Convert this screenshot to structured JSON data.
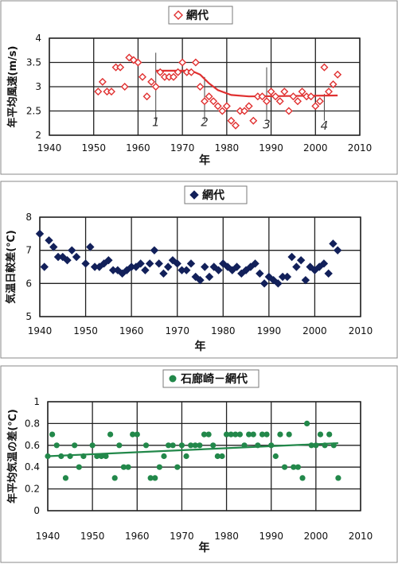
{
  "colors": {
    "red": "#e03030",
    "navy": "#12205a",
    "green": "#22884a",
    "frame": "#222222"
  },
  "chart_data": [
    {
      "type": "scatter",
      "title": "網代",
      "legend_marker": "open-diamond",
      "color": "#e03030",
      "xlabel": "年",
      "ylabel": "年平均風速(m/s)",
      "xlim": [
        1940,
        2010
      ],
      "ylim": [
        2,
        4
      ],
      "xticks": [
        "1940",
        "1950",
        "1960",
        "1970",
        "1980",
        "1990",
        "2000",
        "2010"
      ],
      "yticks": [
        "2",
        "2.5",
        "3",
        "3.5",
        "4"
      ],
      "grid": true,
      "legend_position": "top-center",
      "points": [
        {
          "x": 1951,
          "y": 2.9
        },
        {
          "x": 1952,
          "y": 3.1
        },
        {
          "x": 1953,
          "y": 2.9
        },
        {
          "x": 1954,
          "y": 2.9
        },
        {
          "x": 1955,
          "y": 3.4
        },
        {
          "x": 1956,
          "y": 3.4
        },
        {
          "x": 1957,
          "y": 3.0
        },
        {
          "x": 1958,
          "y": 3.6
        },
        {
          "x": 1959,
          "y": 3.55
        },
        {
          "x": 1960,
          "y": 3.5
        },
        {
          "x": 1961,
          "y": 3.2
        },
        {
          "x": 1962,
          "y": 2.8
        },
        {
          "x": 1963,
          "y": 3.1
        },
        {
          "x": 1964,
          "y": 3.0
        },
        {
          "x": 1965,
          "y": 3.3
        },
        {
          "x": 1966,
          "y": 3.2
        },
        {
          "x": 1967,
          "y": 3.2
        },
        {
          "x": 1968,
          "y": 3.2
        },
        {
          "x": 1969,
          "y": 3.3
        },
        {
          "x": 1970,
          "y": 3.5
        },
        {
          "x": 1971,
          "y": 3.3
        },
        {
          "x": 1972,
          "y": 3.3
        },
        {
          "x": 1973,
          "y": 3.5
        },
        {
          "x": 1974,
          "y": 3.0
        },
        {
          "x": 1975,
          "y": 2.7
        },
        {
          "x": 1976,
          "y": 2.8
        },
        {
          "x": 1977,
          "y": 2.7
        },
        {
          "x": 1978,
          "y": 2.6
        },
        {
          "x": 1979,
          "y": 2.5
        },
        {
          "x": 1980,
          "y": 2.6
        },
        {
          "x": 1981,
          "y": 2.3
        },
        {
          "x": 1982,
          "y": 2.2
        },
        {
          "x": 1983,
          "y": 2.5
        },
        {
          "x": 1984,
          "y": 2.5
        },
        {
          "x": 1985,
          "y": 2.6
        },
        {
          "x": 1986,
          "y": 2.3
        },
        {
          "x": 1987,
          "y": 2.8
        },
        {
          "x": 1988,
          "y": 2.8
        },
        {
          "x": 1989,
          "y": 2.7
        },
        {
          "x": 1990,
          "y": 2.9
        },
        {
          "x": 1991,
          "y": 2.8
        },
        {
          "x": 1992,
          "y": 2.7
        },
        {
          "x": 1993,
          "y": 2.9
        },
        {
          "x": 1994,
          "y": 2.5
        },
        {
          "x": 1995,
          "y": 2.8
        },
        {
          "x": 1996,
          "y": 2.7
        },
        {
          "x": 1997,
          "y": 2.9
        },
        {
          "x": 1998,
          "y": 2.8
        },
        {
          "x": 1999,
          "y": 2.8
        },
        {
          "x": 2000,
          "y": 2.6
        },
        {
          "x": 2001,
          "y": 2.7
        },
        {
          "x": 2002,
          "y": 3.4
        },
        {
          "x": 2003,
          "y": 2.9
        },
        {
          "x": 2004,
          "y": 3.05
        },
        {
          "x": 2005,
          "y": 3.25
        }
      ],
      "trend_line": [
        {
          "x": 1964,
          "y": 3.33
        },
        {
          "x": 1972,
          "y": 3.33
        },
        {
          "x": 1974,
          "y": 3.25
        },
        {
          "x": 1976,
          "y": 3.07
        },
        {
          "x": 1978,
          "y": 2.93
        },
        {
          "x": 1981,
          "y": 2.83
        },
        {
          "x": 1985,
          "y": 2.8
        },
        {
          "x": 2005,
          "y": 2.82
        }
      ],
      "annotations": [
        {
          "text": "1",
          "x": 1964,
          "y": 2.27
        },
        {
          "text": "2",
          "x": 1975,
          "y": 2.27
        },
        {
          "text": "3",
          "x": 1989,
          "y": 2.22
        },
        {
          "text": "4",
          "x": 2002,
          "y": 2.2
        }
      ],
      "marker_lines": [
        {
          "x": 1964,
          "y0": 2.3,
          "y1": 3.7
        },
        {
          "x": 1975,
          "y0": 2.3,
          "y1": 3.2
        },
        {
          "x": 1989,
          "y0": 2.3,
          "y1": 3.4
        },
        {
          "x": 2002,
          "y0": 2.3,
          "y1": 2.85
        }
      ]
    },
    {
      "type": "scatter",
      "title": "網代",
      "legend_marker": "filled-diamond",
      "color": "#12205a",
      "xlabel": "年",
      "ylabel": "気温日較差(℃)",
      "xlim": [
        1940,
        2010
      ],
      "ylim": [
        5,
        8
      ],
      "xticks": [
        "1940",
        "1950",
        "1960",
        "1970",
        "1980",
        "1990",
        "2000",
        "2010"
      ],
      "yticks": [
        "5",
        "6",
        "7",
        "8"
      ],
      "grid": true,
      "legend_position": "top-left",
      "points": [
        {
          "x": 1940,
          "y": 7.5
        },
        {
          "x": 1941,
          "y": 6.5
        },
        {
          "x": 1942,
          "y": 7.3
        },
        {
          "x": 1943,
          "y": 7.1
        },
        {
          "x": 1944,
          "y": 6.8
        },
        {
          "x": 1945,
          "y": 6.8
        },
        {
          "x": 1946,
          "y": 6.7
        },
        {
          "x": 1947,
          "y": 7.0
        },
        {
          "x": 1948,
          "y": 6.8
        },
        {
          "x": 1950,
          "y": 6.6
        },
        {
          "x": 1951,
          "y": 7.1
        },
        {
          "x": 1952,
          "y": 6.5
        },
        {
          "x": 1953,
          "y": 6.5
        },
        {
          "x": 1954,
          "y": 6.6
        },
        {
          "x": 1955,
          "y": 6.7
        },
        {
          "x": 1956,
          "y": 6.4
        },
        {
          "x": 1957,
          "y": 6.4
        },
        {
          "x": 1958,
          "y": 6.3
        },
        {
          "x": 1959,
          "y": 6.4
        },
        {
          "x": 1960,
          "y": 6.5
        },
        {
          "x": 1961,
          "y": 6.5
        },
        {
          "x": 1962,
          "y": 6.6
        },
        {
          "x": 1963,
          "y": 6.4
        },
        {
          "x": 1964,
          "y": 6.6
        },
        {
          "x": 1965,
          "y": 7.0
        },
        {
          "x": 1966,
          "y": 6.6
        },
        {
          "x": 1967,
          "y": 6.3
        },
        {
          "x": 1968,
          "y": 6.5
        },
        {
          "x": 1969,
          "y": 6.7
        },
        {
          "x": 1970,
          "y": 6.6
        },
        {
          "x": 1971,
          "y": 6.4
        },
        {
          "x": 1972,
          "y": 6.4
        },
        {
          "x": 1973,
          "y": 6.6
        },
        {
          "x": 1974,
          "y": 6.2
        },
        {
          "x": 1975,
          "y": 6.1
        },
        {
          "x": 1976,
          "y": 6.5
        },
        {
          "x": 1977,
          "y": 6.2
        },
        {
          "x": 1978,
          "y": 6.5
        },
        {
          "x": 1979,
          "y": 6.4
        },
        {
          "x": 1980,
          "y": 6.6
        },
        {
          "x": 1981,
          "y": 6.5
        },
        {
          "x": 1982,
          "y": 6.4
        },
        {
          "x": 1983,
          "y": 6.5
        },
        {
          "x": 1984,
          "y": 6.3
        },
        {
          "x": 1985,
          "y": 6.4
        },
        {
          "x": 1986,
          "y": 6.5
        },
        {
          "x": 1987,
          "y": 6.6
        },
        {
          "x": 1988,
          "y": 6.3
        },
        {
          "x": 1989,
          "y": 6.0
        },
        {
          "x": 1990,
          "y": 6.2
        },
        {
          "x": 1991,
          "y": 6.1
        },
        {
          "x": 1992,
          "y": 6.0
        },
        {
          "x": 1993,
          "y": 6.2
        },
        {
          "x": 1994,
          "y": 6.2
        },
        {
          "x": 1995,
          "y": 6.8
        },
        {
          "x": 1996,
          "y": 6.5
        },
        {
          "x": 1997,
          "y": 6.7
        },
        {
          "x": 1998,
          "y": 6.1
        },
        {
          "x": 1999,
          "y": 6.5
        },
        {
          "x": 2000,
          "y": 6.4
        },
        {
          "x": 2001,
          "y": 6.5
        },
        {
          "x": 2002,
          "y": 6.6
        },
        {
          "x": 2003,
          "y": 6.3
        },
        {
          "x": 2004,
          "y": 7.2
        },
        {
          "x": 2005,
          "y": 7.0
        }
      ]
    },
    {
      "type": "scatter",
      "title": "石廊崎－網代",
      "legend_marker": "filled-circle",
      "color": "#22884a",
      "xlabel": "年",
      "ylabel": "年平均気温の差(℃)",
      "xlim": [
        1940,
        2010
      ],
      "ylim": [
        0,
        1
      ],
      "xticks": [
        "1940",
        "1950",
        "1960",
        "1970",
        "1980",
        "1990",
        "2000",
        "2010"
      ],
      "yticks": [
        "0",
        "0.2",
        "0.4",
        "0.6",
        "0.8",
        "1"
      ],
      "grid": true,
      "legend_position": "top-center",
      "points": [
        {
          "x": 1940,
          "y": 0.5
        },
        {
          "x": 1941,
          "y": 0.7
        },
        {
          "x": 1942,
          "y": 0.6
        },
        {
          "x": 1943,
          "y": 0.5
        },
        {
          "x": 1944,
          "y": 0.3
        },
        {
          "x": 1945,
          "y": 0.5
        },
        {
          "x": 1946,
          "y": 0.6
        },
        {
          "x": 1947,
          "y": 0.4
        },
        {
          "x": 1948,
          "y": 0.5
        },
        {
          "x": 1950,
          "y": 0.6
        },
        {
          "x": 1951,
          "y": 0.5
        },
        {
          "x": 1952,
          "y": 0.5
        },
        {
          "x": 1953,
          "y": 0.5
        },
        {
          "x": 1954,
          "y": 0.7
        },
        {
          "x": 1955,
          "y": 0.3
        },
        {
          "x": 1956,
          "y": 0.6
        },
        {
          "x": 1957,
          "y": 0.4
        },
        {
          "x": 1958,
          "y": 0.4
        },
        {
          "x": 1959,
          "y": 0.7
        },
        {
          "x": 1960,
          "y": 0.7
        },
        {
          "x": 1962,
          "y": 0.6
        },
        {
          "x": 1963,
          "y": 0.3
        },
        {
          "x": 1964,
          "y": 0.3
        },
        {
          "x": 1965,
          "y": 0.4
        },
        {
          "x": 1966,
          "y": 0.5
        },
        {
          "x": 1967,
          "y": 0.6
        },
        {
          "x": 1968,
          "y": 0.6
        },
        {
          "x": 1969,
          "y": 0.4
        },
        {
          "x": 1970,
          "y": 0.6
        },
        {
          "x": 1971,
          "y": 0.5
        },
        {
          "x": 1972,
          "y": 0.6
        },
        {
          "x": 1973,
          "y": 0.6
        },
        {
          "x": 1974,
          "y": 0.6
        },
        {
          "x": 1975,
          "y": 0.7
        },
        {
          "x": 1976,
          "y": 0.7
        },
        {
          "x": 1977,
          "y": 0.6
        },
        {
          "x": 1978,
          "y": 0.5
        },
        {
          "x": 1979,
          "y": 0.5
        },
        {
          "x": 1980,
          "y": 0.7
        },
        {
          "x": 1981,
          "y": 0.7
        },
        {
          "x": 1982,
          "y": 0.7
        },
        {
          "x": 1983,
          "y": 0.7
        },
        {
          "x": 1984,
          "y": 0.6
        },
        {
          "x": 1985,
          "y": 0.7
        },
        {
          "x": 1986,
          "y": 0.7
        },
        {
          "x": 1987,
          "y": 0.6
        },
        {
          "x": 1988,
          "y": 0.7
        },
        {
          "x": 1989,
          "y": 0.7
        },
        {
          "x": 1990,
          "y": 0.6
        },
        {
          "x": 1991,
          "y": 0.5
        },
        {
          "x": 1992,
          "y": 0.7
        },
        {
          "x": 1993,
          "y": 0.4
        },
        {
          "x": 1994,
          "y": 0.7
        },
        {
          "x": 1995,
          "y": 0.4
        },
        {
          "x": 1996,
          "y": 0.4
        },
        {
          "x": 1997,
          "y": 0.3
        },
        {
          "x": 1998,
          "y": 0.8
        },
        {
          "x": 1999,
          "y": 0.6
        },
        {
          "x": 2000,
          "y": 0.6
        },
        {
          "x": 2001,
          "y": 0.7
        },
        {
          "x": 2002,
          "y": 0.6
        },
        {
          "x": 2003,
          "y": 0.7
        },
        {
          "x": 2004,
          "y": 0.6
        },
        {
          "x": 2005,
          "y": 0.3
        }
      ],
      "trend_line": [
        {
          "x": 1940,
          "y": 0.5
        },
        {
          "x": 2005,
          "y": 0.62
        }
      ]
    }
  ]
}
